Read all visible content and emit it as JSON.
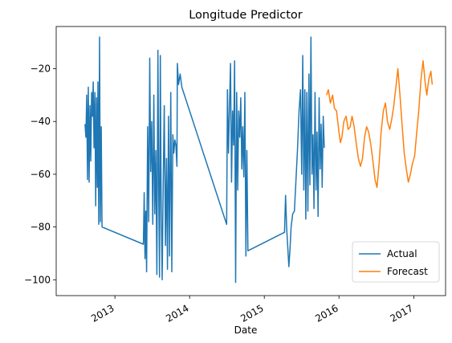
{
  "chart_data": {
    "type": "line",
    "title": "Longitude Predictor",
    "xlabel": "Date",
    "ylabel": "",
    "x_type": "date",
    "xlim": [
      "2012-03-20",
      "2017-06-05"
    ],
    "ylim": [
      -106,
      -4
    ],
    "xticks": [
      {
        "date": "2013-01-01",
        "label": "2013"
      },
      {
        "date": "2014-01-01",
        "label": "2014"
      },
      {
        "date": "2015-01-01",
        "label": "2015"
      },
      {
        "date": "2016-01-01",
        "label": "2016"
      },
      {
        "date": "2017-01-01",
        "label": "2017"
      }
    ],
    "yticks": [
      -100,
      -80,
      -60,
      -40,
      -20
    ],
    "grid": false,
    "legend": {
      "position": "lower-right"
    },
    "series": [
      {
        "name": "Actual",
        "color": "#1f77b4",
        "points": [
          [
            "2012-08-08",
            -41
          ],
          [
            "2012-08-12",
            -46
          ],
          [
            "2012-08-16",
            -30
          ],
          [
            "2012-08-20",
            -62
          ],
          [
            "2012-08-24",
            -27
          ],
          [
            "2012-08-28",
            -63
          ],
          [
            "2012-09-01",
            -34
          ],
          [
            "2012-09-05",
            -55
          ],
          [
            "2012-09-09",
            -29
          ],
          [
            "2012-09-13",
            -38
          ],
          [
            "2012-09-17",
            -25
          ],
          [
            "2012-09-21",
            -50
          ],
          [
            "2012-09-25",
            -29
          ],
          [
            "2012-09-29",
            -72
          ],
          [
            "2012-10-03",
            -31
          ],
          [
            "2012-10-07",
            -65
          ],
          [
            "2012-10-10",
            -25
          ],
          [
            "2012-10-14",
            -79
          ],
          [
            "2012-10-18",
            -8
          ],
          [
            "2012-10-22",
            -78
          ],
          [
            "2012-10-26",
            -42
          ],
          [
            "2012-10-30",
            -80
          ],
          [
            "2013-05-20",
            -86.5
          ],
          [
            "2013-05-24",
            -67
          ],
          [
            "2013-05-28",
            -92
          ],
          [
            "2013-06-01",
            -74
          ],
          [
            "2013-06-05",
            -97
          ],
          [
            "2013-06-10",
            -42
          ],
          [
            "2013-06-15",
            -78
          ],
          [
            "2013-06-20",
            -16
          ],
          [
            "2013-06-25",
            -59
          ],
          [
            "2013-06-30",
            -40
          ],
          [
            "2013-07-05",
            -79
          ],
          [
            "2013-07-10",
            -30
          ],
          [
            "2013-07-15",
            -75
          ],
          [
            "2013-07-20",
            -51
          ],
          [
            "2013-07-25",
            -98
          ],
          [
            "2013-07-30",
            -13
          ],
          [
            "2013-08-03",
            -66
          ],
          [
            "2013-08-07",
            -99
          ],
          [
            "2013-08-11",
            -15
          ],
          [
            "2013-08-15",
            -69
          ],
          [
            "2013-08-20",
            -100
          ],
          [
            "2013-08-25",
            -63
          ],
          [
            "2013-08-30",
            -34
          ],
          [
            "2013-09-05",
            -87
          ],
          [
            "2013-09-10",
            -54
          ],
          [
            "2013-09-15",
            -96
          ],
          [
            "2013-09-20",
            -38
          ],
          [
            "2013-09-25",
            -91
          ],
          [
            "2013-10-01",
            -29
          ],
          [
            "2013-10-06",
            -97
          ],
          [
            "2013-10-11",
            -45
          ],
          [
            "2013-10-16",
            -52
          ],
          [
            "2013-10-21",
            -47
          ],
          [
            "2013-10-26",
            -49
          ],
          [
            "2013-10-31",
            -57
          ],
          [
            "2013-11-02",
            -18
          ],
          [
            "2013-11-08",
            -26
          ],
          [
            "2013-11-16",
            -22
          ],
          [
            "2013-11-24",
            -27
          ],
          [
            "2014-07-01",
            -79
          ],
          [
            "2014-07-05",
            -28
          ],
          [
            "2014-07-10",
            -52
          ],
          [
            "2014-07-15",
            -34
          ],
          [
            "2014-07-20",
            -18
          ],
          [
            "2014-07-25",
            -63
          ],
          [
            "2014-07-30",
            -36
          ],
          [
            "2014-08-04",
            -49
          ],
          [
            "2014-08-09",
            -17
          ],
          [
            "2014-08-14",
            -101
          ],
          [
            "2014-08-19",
            -29
          ],
          [
            "2014-08-24",
            -66
          ],
          [
            "2014-08-29",
            -36
          ],
          [
            "2014-09-03",
            -46
          ],
          [
            "2014-09-08",
            -31
          ],
          [
            "2014-09-13",
            -58
          ],
          [
            "2014-09-18",
            -42
          ],
          [
            "2014-09-23",
            -61
          ],
          [
            "2014-09-28",
            -29
          ],
          [
            "2014-10-03",
            -91
          ],
          [
            "2014-10-08",
            -51
          ],
          [
            "2014-10-13",
            -89
          ],
          [
            "2015-04-10",
            -82
          ],
          [
            "2015-04-15",
            -68
          ],
          [
            "2015-04-20",
            -80
          ],
          [
            "2015-05-01",
            -95
          ],
          [
            "2015-05-06",
            -89
          ],
          [
            "2015-05-12",
            -80
          ],
          [
            "2015-05-20",
            -75
          ],
          [
            "2015-05-28",
            -74
          ],
          [
            "2015-06-05",
            -62
          ],
          [
            "2015-06-12",
            -51
          ],
          [
            "2015-06-20",
            -36
          ],
          [
            "2015-06-27",
            -28
          ],
          [
            "2015-07-03",
            -60
          ],
          [
            "2015-07-08",
            -15
          ],
          [
            "2015-07-13",
            -66
          ],
          [
            "2015-07-18",
            -28
          ],
          [
            "2015-07-23",
            -77
          ],
          [
            "2015-07-28",
            -29
          ],
          [
            "2015-08-02",
            -74
          ],
          [
            "2015-08-07",
            -22
          ],
          [
            "2015-08-12",
            -64
          ],
          [
            "2015-08-17",
            -8
          ],
          [
            "2015-08-22",
            -60
          ],
          [
            "2015-08-27",
            -45
          ],
          [
            "2015-09-01",
            -73
          ],
          [
            "2015-09-06",
            -29
          ],
          [
            "2015-09-11",
            -66
          ],
          [
            "2015-09-16",
            -44
          ],
          [
            "2015-09-21",
            -76
          ],
          [
            "2015-09-26",
            -31
          ],
          [
            "2015-10-01",
            -58
          ],
          [
            "2015-10-06",
            -41
          ],
          [
            "2015-10-11",
            -65
          ],
          [
            "2015-10-16",
            -38
          ],
          [
            "2015-10-21",
            -50
          ]
        ]
      },
      {
        "name": "Forecast",
        "color": "#ff7f0e",
        "points": [
          [
            "2015-11-01",
            -30
          ],
          [
            "2015-11-10",
            -28
          ],
          [
            "2015-11-20",
            -33
          ],
          [
            "2015-12-01",
            -30
          ],
          [
            "2015-12-10",
            -35
          ],
          [
            "2015-12-20",
            -36
          ],
          [
            "2016-01-01",
            -44
          ],
          [
            "2016-01-08",
            -48
          ],
          [
            "2016-01-15",
            -46
          ],
          [
            "2016-01-25",
            -40
          ],
          [
            "2016-02-05",
            -38
          ],
          [
            "2016-02-15",
            -43
          ],
          [
            "2016-02-25",
            -42
          ],
          [
            "2016-03-05",
            -38
          ],
          [
            "2016-03-15",
            -42
          ],
          [
            "2016-03-25",
            -48
          ],
          [
            "2016-04-05",
            -54
          ],
          [
            "2016-04-15",
            -57
          ],
          [
            "2016-04-25",
            -54
          ],
          [
            "2016-05-05",
            -46
          ],
          [
            "2016-05-15",
            -42
          ],
          [
            "2016-05-25",
            -44
          ],
          [
            "2016-06-05",
            -49
          ],
          [
            "2016-06-15",
            -55
          ],
          [
            "2016-06-25",
            -62
          ],
          [
            "2016-07-05",
            -65
          ],
          [
            "2016-07-15",
            -56
          ],
          [
            "2016-07-25",
            -44
          ],
          [
            "2016-08-05",
            -36
          ],
          [
            "2016-08-15",
            -33
          ],
          [
            "2016-08-25",
            -40
          ],
          [
            "2016-09-05",
            -43
          ],
          [
            "2016-09-15",
            -39
          ],
          [
            "2016-09-25",
            -34
          ],
          [
            "2016-10-05",
            -27
          ],
          [
            "2016-10-15",
            -20
          ],
          [
            "2016-10-25",
            -30
          ],
          [
            "2016-11-05",
            -42
          ],
          [
            "2016-11-15",
            -52
          ],
          [
            "2016-11-25",
            -58
          ],
          [
            "2016-12-05",
            -63
          ],
          [
            "2016-12-15",
            -60
          ],
          [
            "2016-12-25",
            -56
          ],
          [
            "2017-01-05",
            -53
          ],
          [
            "2017-01-15",
            -44
          ],
          [
            "2017-01-25",
            -36
          ],
          [
            "2017-02-05",
            -24
          ],
          [
            "2017-02-15",
            -17
          ],
          [
            "2017-02-25",
            -25
          ],
          [
            "2017-03-05",
            -30
          ],
          [
            "2017-03-15",
            -24
          ],
          [
            "2017-03-25",
            -21
          ],
          [
            "2017-04-01",
            -26
          ]
        ]
      }
    ]
  }
}
